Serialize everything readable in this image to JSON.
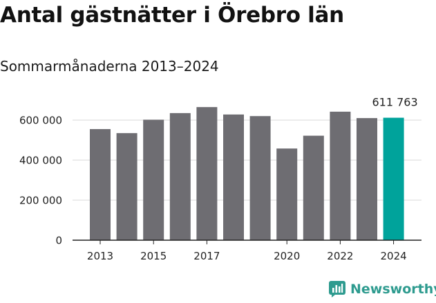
{
  "header": {
    "title": "Antal gästnätter i Örebro län",
    "subtitle": "Sommarmånaderna 2013–2024"
  },
  "brand": {
    "name": "Newsworthy",
    "icon": "newsworthy-logo-icon",
    "color": "#2e9b8f"
  },
  "colors": {
    "bar": "#6e6d72",
    "highlight": "#00a39b",
    "grid": "#d9d9d9",
    "axis": "#222222"
  },
  "chart_data": {
    "type": "bar",
    "categories": [
      "2013",
      "2014",
      "2015",
      "2016",
      "2017",
      "2018",
      "2019",
      "2020",
      "2021",
      "2022",
      "2023",
      "2024"
    ],
    "values": [
      555000,
      535000,
      602000,
      635000,
      665000,
      628000,
      620000,
      458000,
      522000,
      642000,
      610000,
      611763
    ],
    "highlight_index": 11,
    "data_labels": [
      {
        "index": 11,
        "text": "611 763"
      }
    ],
    "x_tick_labels": [
      "2013",
      "2015",
      "2017",
      "2020",
      "2022",
      "2024"
    ],
    "y_ticks": [
      {
        "value": 0,
        "label": "0"
      },
      {
        "value": 200000,
        "label": "200 000"
      },
      {
        "value": 400000,
        "label": "400 000"
      },
      {
        "value": 600000,
        "label": "600 000"
      }
    ],
    "ylim": [
      0,
      650000
    ],
    "grid": true,
    "title": "Antal gästnätter i Örebro län",
    "subtitle": "Sommarmånaderna 2013–2024"
  }
}
